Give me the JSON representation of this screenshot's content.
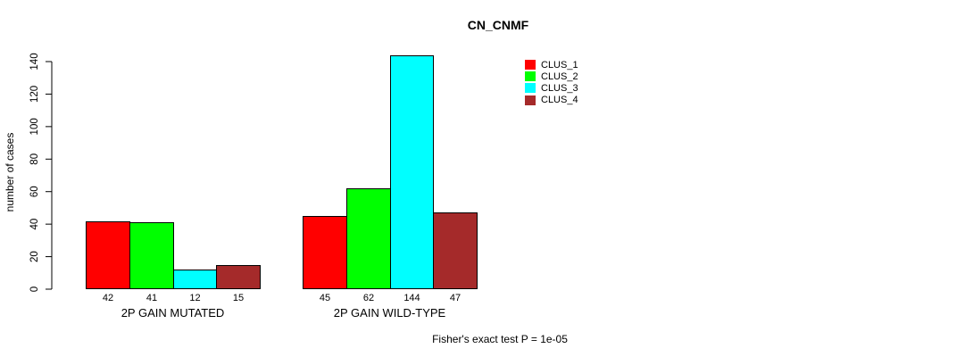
{
  "chart_data": {
    "type": "bar",
    "title": "CN_CNMF",
    "ylabel": "number of cases",
    "xlabel": "",
    "ylim": [
      0,
      140
    ],
    "yticks": [
      0,
      20,
      40,
      60,
      80,
      100,
      120,
      140
    ],
    "grid": false,
    "legend_position": "top-right",
    "value_labels_shown": true,
    "groups": [
      "2P GAIN MUTATED",
      "2P GAIN WILD-TYPE"
    ],
    "series": [
      {
        "name": "CLUS_1",
        "color": "#FF0000",
        "values": [
          42,
          45
        ]
      },
      {
        "name": "CLUS_2",
        "color": "#00FF00",
        "values": [
          41,
          62
        ]
      },
      {
        "name": "CLUS_3",
        "color": "#00FFFF",
        "values": [
          12,
          144
        ]
      },
      {
        "name": "CLUS_4",
        "color": "#A52A2A",
        "values": [
          15,
          47
        ]
      }
    ],
    "footnote": "Fisher's exact test P = 1e-05"
  }
}
